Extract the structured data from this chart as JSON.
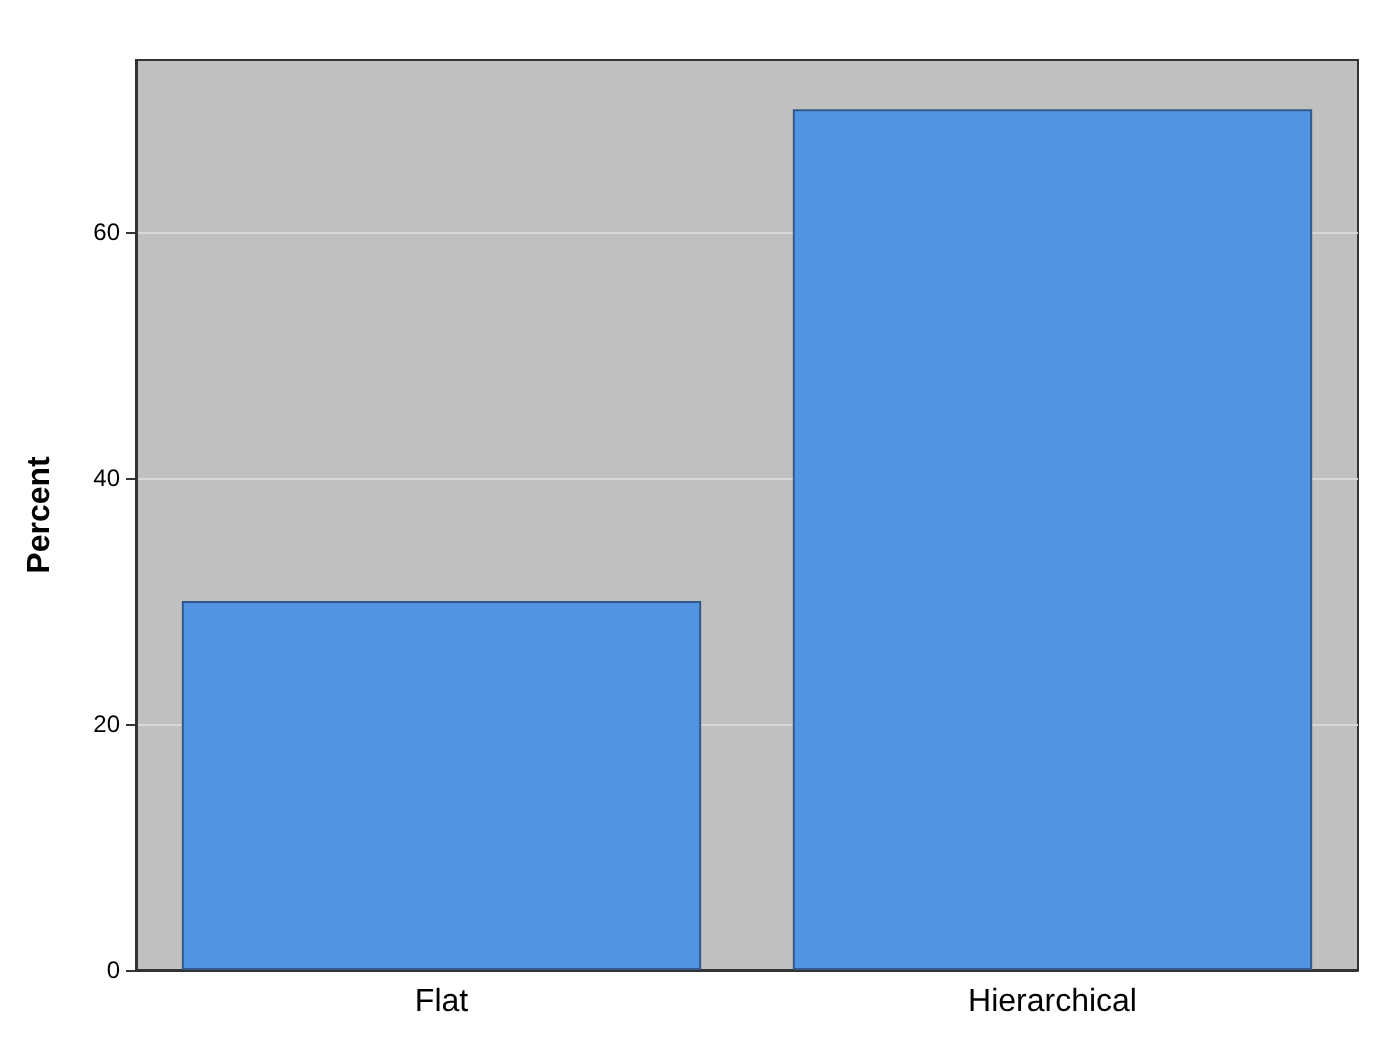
{
  "chart_data": {
    "type": "bar",
    "ylabel": "Percent",
    "categories": [
      "Flat",
      "Hierarchical"
    ],
    "values": [
      30,
      70
    ],
    "color": "#5294e2",
    "ylim": [
      0,
      74
    ],
    "yticks": [
      0,
      20,
      40,
      60
    ],
    "grid": true
  }
}
